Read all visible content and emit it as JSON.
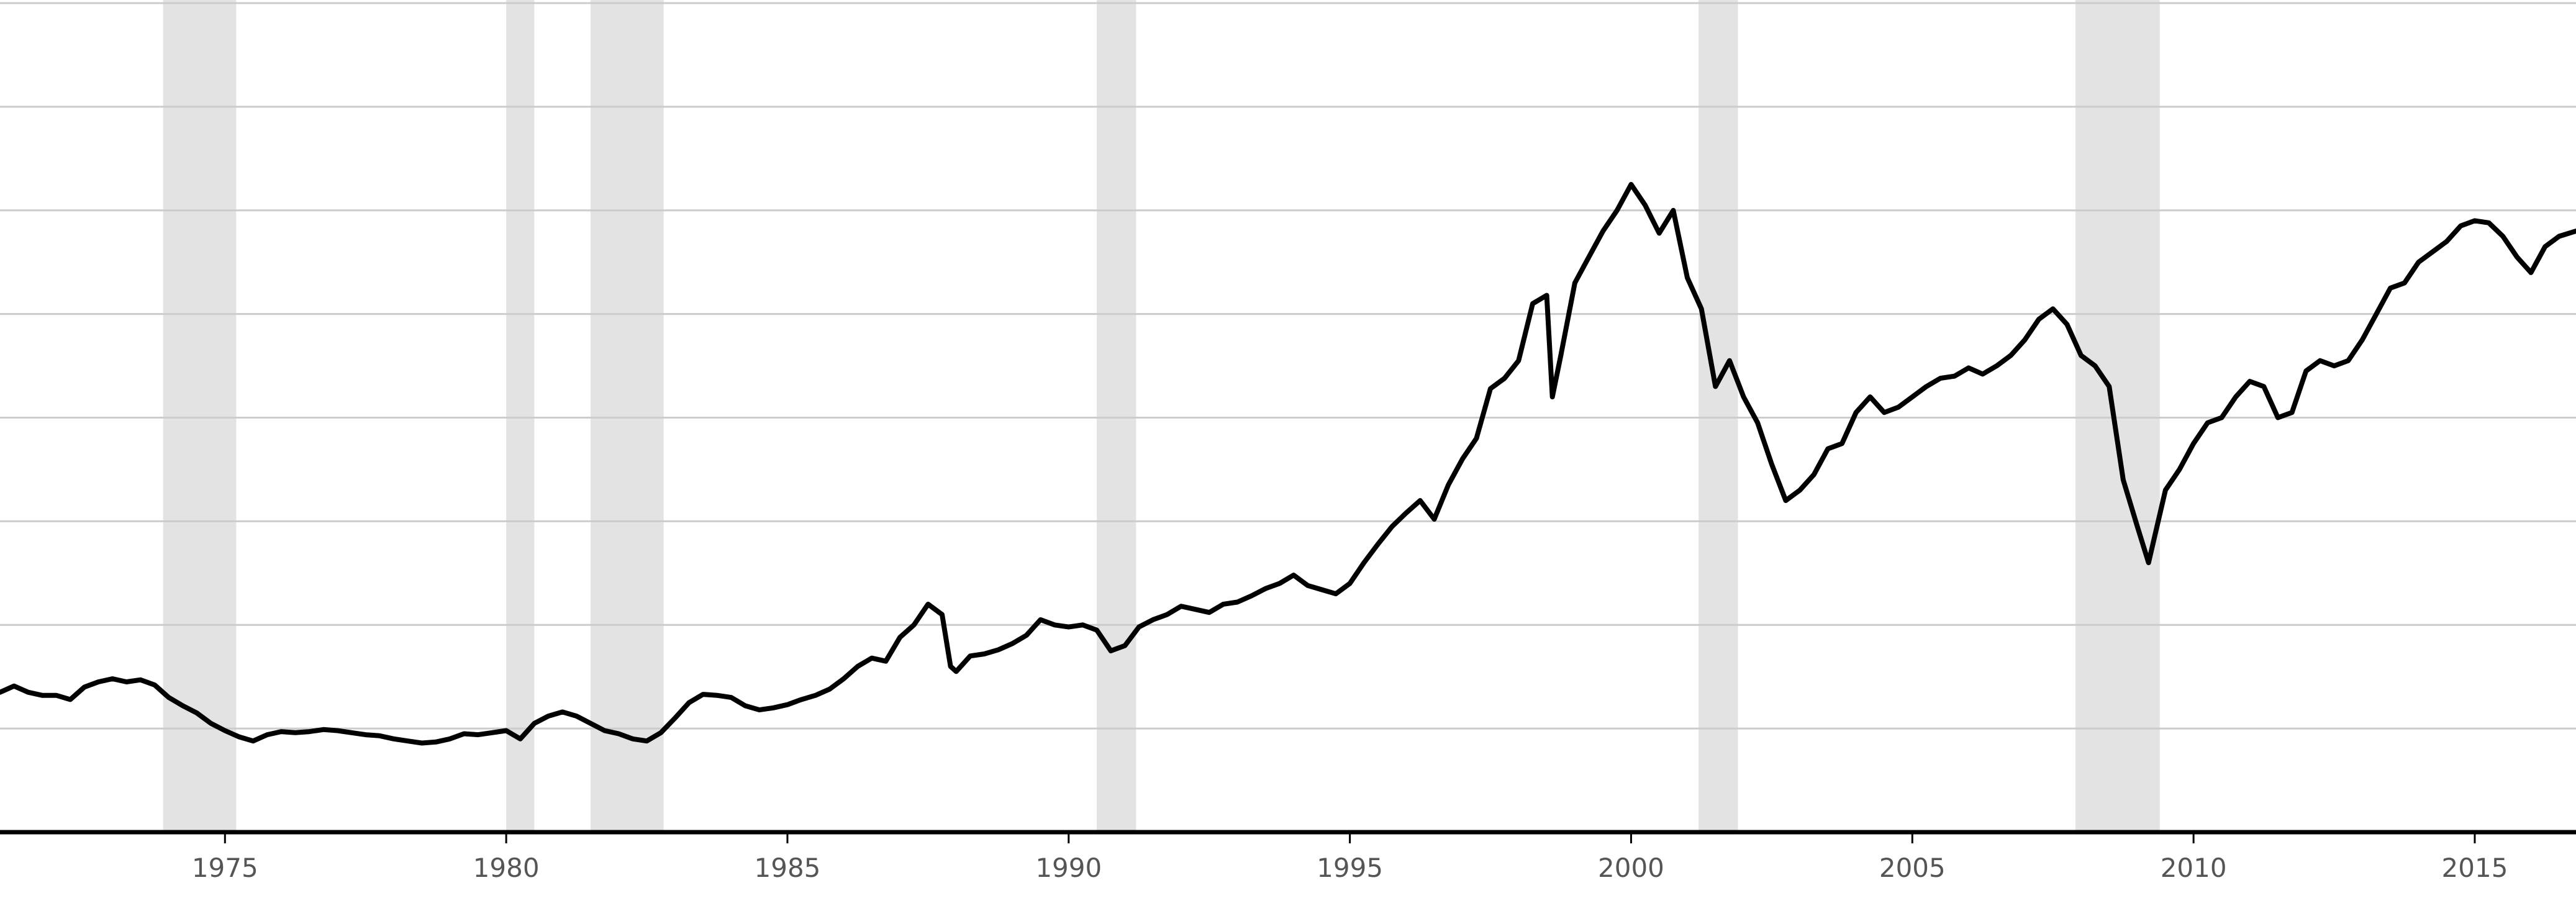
{
  "chart_data": {
    "type": "line",
    "title": "",
    "xlabel": "",
    "ylabel": "",
    "x_ticks": [
      1975,
      1980,
      1985,
      1990,
      1995,
      2000,
      2005,
      2010,
      2015
    ],
    "x_tick_labels": [
      "1975",
      "1980",
      "1985",
      "1990",
      "1995",
      "2000",
      "2005",
      "2010",
      "2015"
    ],
    "xlim": [
      1971.0,
      2016.8
    ],
    "ylim": [
      0,
      8
    ],
    "y_gridlines": [
      1,
      2,
      3,
      4,
      5,
      6,
      7,
      8
    ],
    "grid": "horizontal",
    "recession_bands": [
      [
        1973.9,
        1975.2
      ],
      [
        1980.0,
        1980.5
      ],
      [
        1981.5,
        1982.8
      ],
      [
        1990.5,
        1991.2
      ],
      [
        2001.2,
        2001.9
      ],
      [
        2007.9,
        2009.4
      ]
    ],
    "colors": {
      "line": "#000000",
      "recession": "#e3e3e3",
      "grid": "#cccccc",
      "axis": "#000000",
      "tick_text": "#555555"
    },
    "series": [
      {
        "values": [
          [
            1971.0,
            1.35
          ],
          [
            1971.25,
            1.41
          ],
          [
            1971.5,
            1.35
          ],
          [
            1971.75,
            1.32
          ],
          [
            1972.0,
            1.32
          ],
          [
            1972.25,
            1.28
          ],
          [
            1972.5,
            1.4
          ],
          [
            1972.75,
            1.45
          ],
          [
            1973.0,
            1.48
          ],
          [
            1973.25,
            1.45
          ],
          [
            1973.5,
            1.47
          ],
          [
            1973.75,
            1.42
          ],
          [
            1974.0,
            1.3
          ],
          [
            1974.25,
            1.22
          ],
          [
            1974.5,
            1.15
          ],
          [
            1974.75,
            1.05
          ],
          [
            1975.0,
            0.98
          ],
          [
            1975.25,
            0.92
          ],
          [
            1975.5,
            0.88
          ],
          [
            1975.75,
            0.94
          ],
          [
            1976.0,
            0.97
          ],
          [
            1976.25,
            0.96
          ],
          [
            1976.5,
            0.97
          ],
          [
            1976.75,
            0.99
          ],
          [
            1977.0,
            0.98
          ],
          [
            1977.25,
            0.96
          ],
          [
            1977.5,
            0.94
          ],
          [
            1977.75,
            0.93
          ],
          [
            1978.0,
            0.9
          ],
          [
            1978.25,
            0.88
          ],
          [
            1978.5,
            0.86
          ],
          [
            1978.75,
            0.87
          ],
          [
            1979.0,
            0.9
          ],
          [
            1979.25,
            0.95
          ],
          [
            1979.5,
            0.94
          ],
          [
            1979.75,
            0.96
          ],
          [
            1980.0,
            0.98
          ],
          [
            1980.25,
            0.9
          ],
          [
            1980.5,
            1.05
          ],
          [
            1980.75,
            1.12
          ],
          [
            1981.0,
            1.16
          ],
          [
            1981.25,
            1.12
          ],
          [
            1981.5,
            1.05
          ],
          [
            1981.75,
            0.98
          ],
          [
            1982.0,
            0.95
          ],
          [
            1982.25,
            0.9
          ],
          [
            1982.5,
            0.88
          ],
          [
            1982.75,
            0.96
          ],
          [
            1983.0,
            1.1
          ],
          [
            1983.25,
            1.25
          ],
          [
            1983.5,
            1.33
          ],
          [
            1983.75,
            1.32
          ],
          [
            1984.0,
            1.3
          ],
          [
            1984.25,
            1.22
          ],
          [
            1984.5,
            1.18
          ],
          [
            1984.75,
            1.2
          ],
          [
            1985.0,
            1.23
          ],
          [
            1985.25,
            1.28
          ],
          [
            1985.5,
            1.32
          ],
          [
            1985.75,
            1.38
          ],
          [
            1986.0,
            1.48
          ],
          [
            1986.25,
            1.6
          ],
          [
            1986.5,
            1.68
          ],
          [
            1986.75,
            1.65
          ],
          [
            1987.0,
            1.88
          ],
          [
            1987.25,
            2.0
          ],
          [
            1987.5,
            2.2
          ],
          [
            1987.75,
            2.1
          ],
          [
            1987.9,
            1.6
          ],
          [
            1988.0,
            1.55
          ],
          [
            1988.25,
            1.7
          ],
          [
            1988.5,
            1.72
          ],
          [
            1988.75,
            1.76
          ],
          [
            1989.0,
            1.82
          ],
          [
            1989.25,
            1.9
          ],
          [
            1989.5,
            2.05
          ],
          [
            1989.75,
            2.0
          ],
          [
            1990.0,
            1.98
          ],
          [
            1990.25,
            2.0
          ],
          [
            1990.5,
            1.95
          ],
          [
            1990.75,
            1.75
          ],
          [
            1991.0,
            1.8
          ],
          [
            1991.25,
            1.98
          ],
          [
            1991.5,
            2.05
          ],
          [
            1991.75,
            2.1
          ],
          [
            1992.0,
            2.18
          ],
          [
            1992.25,
            2.15
          ],
          [
            1992.5,
            2.12
          ],
          [
            1992.75,
            2.2
          ],
          [
            1993.0,
            2.22
          ],
          [
            1993.25,
            2.28
          ],
          [
            1993.5,
            2.35
          ],
          [
            1993.75,
            2.4
          ],
          [
            1994.0,
            2.48
          ],
          [
            1994.25,
            2.38
          ],
          [
            1994.5,
            2.34
          ],
          [
            1994.75,
            2.3
          ],
          [
            1995.0,
            2.4
          ],
          [
            1995.25,
            2.6
          ],
          [
            1995.5,
            2.78
          ],
          [
            1995.75,
            2.95
          ],
          [
            1996.0,
            3.08
          ],
          [
            1996.25,
            3.2
          ],
          [
            1996.5,
            3.02
          ],
          [
            1996.75,
            3.35
          ],
          [
            1997.0,
            3.6
          ],
          [
            1997.25,
            3.8
          ],
          [
            1997.5,
            4.28
          ],
          [
            1997.75,
            4.38
          ],
          [
            1998.0,
            4.55
          ],
          [
            1998.25,
            5.1
          ],
          [
            1998.5,
            5.18
          ],
          [
            1998.6,
            4.2
          ],
          [
            1998.75,
            4.6
          ],
          [
            1999.0,
            5.3
          ],
          [
            1999.25,
            5.55
          ],
          [
            1999.5,
            5.8
          ],
          [
            1999.75,
            6.0
          ],
          [
            2000.0,
            6.25
          ],
          [
            2000.25,
            6.05
          ],
          [
            2000.5,
            5.78
          ],
          [
            2000.75,
            6.0
          ],
          [
            2001.0,
            5.35
          ],
          [
            2001.25,
            5.05
          ],
          [
            2001.5,
            4.3
          ],
          [
            2001.75,
            4.55
          ],
          [
            2002.0,
            4.2
          ],
          [
            2002.25,
            3.95
          ],
          [
            2002.5,
            3.55
          ],
          [
            2002.75,
            3.2
          ],
          [
            2003.0,
            3.3
          ],
          [
            2003.25,
            3.45
          ],
          [
            2003.5,
            3.7
          ],
          [
            2003.75,
            3.75
          ],
          [
            2004.0,
            4.05
          ],
          [
            2004.25,
            4.2
          ],
          [
            2004.5,
            4.05
          ],
          [
            2004.75,
            4.1
          ],
          [
            2005.0,
            4.2
          ],
          [
            2005.25,
            4.3
          ],
          [
            2005.5,
            4.38
          ],
          [
            2005.75,
            4.4
          ],
          [
            2006.0,
            4.48
          ],
          [
            2006.25,
            4.42
          ],
          [
            2006.5,
            4.5
          ],
          [
            2006.75,
            4.6
          ],
          [
            2007.0,
            4.75
          ],
          [
            2007.25,
            4.95
          ],
          [
            2007.5,
            5.05
          ],
          [
            2007.75,
            4.9
          ],
          [
            2008.0,
            4.6
          ],
          [
            2008.25,
            4.5
          ],
          [
            2008.5,
            4.3
          ],
          [
            2008.75,
            3.4
          ],
          [
            2009.0,
            2.95
          ],
          [
            2009.2,
            2.6
          ],
          [
            2009.5,
            3.3
          ],
          [
            2009.75,
            3.5
          ],
          [
            2010.0,
            3.75
          ],
          [
            2010.25,
            3.95
          ],
          [
            2010.5,
            4.0
          ],
          [
            2010.75,
            4.2
          ],
          [
            2011.0,
            4.35
          ],
          [
            2011.25,
            4.3
          ],
          [
            2011.5,
            4.0
          ],
          [
            2011.75,
            4.05
          ],
          [
            2012.0,
            4.45
          ],
          [
            2012.25,
            4.55
          ],
          [
            2012.5,
            4.5
          ],
          [
            2012.75,
            4.55
          ],
          [
            2013.0,
            4.75
          ],
          [
            2013.25,
            5.0
          ],
          [
            2013.5,
            5.25
          ],
          [
            2013.75,
            5.3
          ],
          [
            2014.0,
            5.5
          ],
          [
            2014.25,
            5.6
          ],
          [
            2014.5,
            5.7
          ],
          [
            2014.75,
            5.85
          ],
          [
            2015.0,
            5.9
          ],
          [
            2015.25,
            5.88
          ],
          [
            2015.5,
            5.75
          ],
          [
            2015.75,
            5.55
          ],
          [
            2016.0,
            5.4
          ],
          [
            2016.25,
            5.65
          ],
          [
            2016.5,
            5.75
          ],
          [
            2016.8,
            5.8
          ]
        ]
      }
    ]
  }
}
